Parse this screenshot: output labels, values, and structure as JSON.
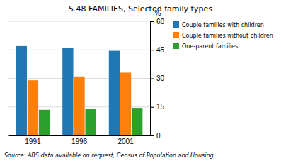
{
  "chart_data": {
    "type": "bar",
    "title": "5.48  FAMILIES, Selected family types",
    "categories": [
      "1991",
      "1996",
      "2001"
    ],
    "series": [
      {
        "name": "Couple families with children",
        "values": [
          47.0,
          46.0,
          44.5
        ]
      },
      {
        "name": "Couple families without children",
        "values": [
          29.0,
          31.0,
          33.0
        ]
      },
      {
        "name": "One-parent families",
        "values": [
          13.5,
          14.0,
          14.5
        ]
      }
    ],
    "y_label": "%",
    "ylim": [
      0,
      60
    ],
    "yticks": [
      0,
      15,
      30,
      45,
      60
    ],
    "grid": true,
    "legend": "right",
    "source": "Source: ABS data available on request, Census of Population and Housing."
  }
}
